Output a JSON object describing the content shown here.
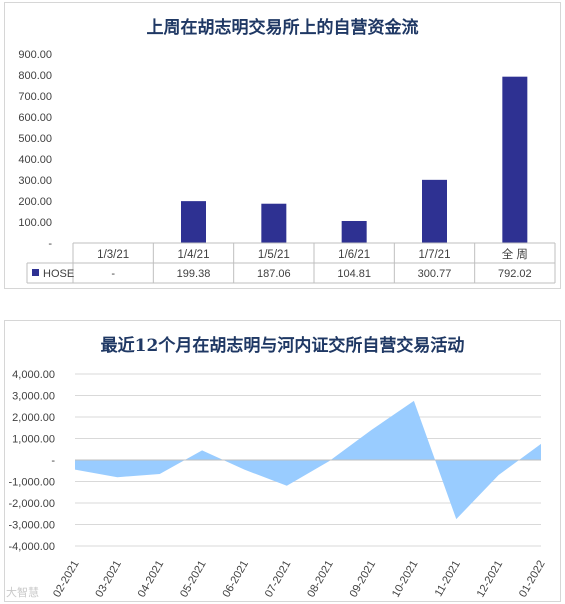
{
  "charts": {
    "weekly": {
      "title": "上周在胡志明交易所上的自营资金流",
      "y_ticks": [
        "900.00",
        "800.00",
        "700.00",
        "600.00",
        "500.00",
        "400.00",
        "300.00",
        "200.00",
        "100.00",
        "-"
      ],
      "series_label": "HOSE",
      "dates": [
        "1/3/21",
        "1/4/21",
        "1/5/21",
        "1/6/21",
        "1/7/21",
        "全 周"
      ],
      "value_labels": [
        "-",
        "199.38",
        "187.06",
        "104.81",
        "300.77",
        "792.02"
      ]
    },
    "monthly": {
      "title": "最近12个月在胡志明与河内证交所自营交易活动",
      "y_ticks": [
        "4,000.00",
        "3,000.00",
        "2,000.00",
        "1,000.00",
        "-",
        "-1,000.00",
        "-2,000.00",
        "-3,000.00",
        "-4,000.00"
      ],
      "months": [
        "02-2021",
        "03-2021",
        "04-2021",
        "05-2021",
        "06-2021",
        "07-2021",
        "08-2021",
        "09-2021",
        "10-2021",
        "11-2021",
        "12-2021",
        "01-2022"
      ]
    }
  },
  "watermark": "大智慧",
  "colors": {
    "bar": "#2e3192",
    "area": "#99ccff",
    "title": "#1f3864"
  },
  "chart_data": [
    {
      "type": "bar",
      "title": "上周在胡志明交易所上的自营资金流",
      "categories": [
        "1/3/21",
        "1/4/21",
        "1/5/21",
        "1/6/21",
        "1/7/21",
        "全 周"
      ],
      "series": [
        {
          "name": "HOSE",
          "values": [
            0,
            199.38,
            187.06,
            104.81,
            300.77,
            792.02
          ]
        }
      ],
      "ylim": [
        0,
        900
      ],
      "grid": false,
      "legend": "table-below"
    },
    {
      "type": "area",
      "title": "最近12个月在胡志明与河内证交所自营交易活动",
      "categories": [
        "02-2021",
        "03-2021",
        "04-2021",
        "05-2021",
        "06-2021",
        "07-2021",
        "08-2021",
        "09-2021",
        "10-2021",
        "11-2021",
        "12-2021",
        "01-2022"
      ],
      "values": [
        -450,
        -800,
        -650,
        450,
        -450,
        -1200,
        -50,
        1400,
        2750,
        -2750,
        -700,
        750
      ],
      "ylim": [
        -4000,
        4000
      ],
      "grid": true
    }
  ]
}
